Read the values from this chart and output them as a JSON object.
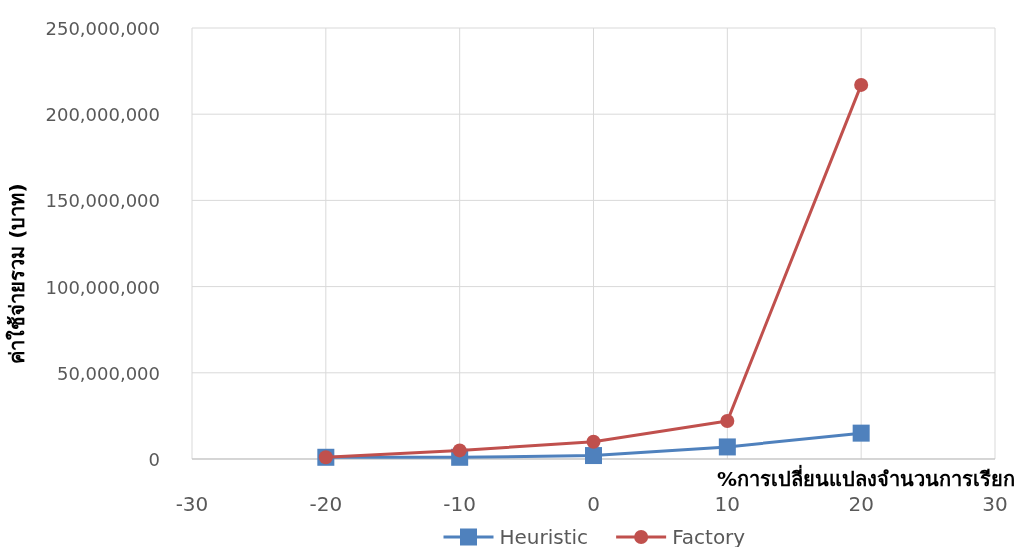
{
  "chart_data": {
    "type": "line",
    "xlabel": "%การเปลี่ยนแปลงจำนวนการเรียก",
    "ylabel": "ค่าใช้จ่ายรวม (บาท)",
    "x": [
      -20,
      -10,
      0,
      10,
      20
    ],
    "series": [
      {
        "name": "Heuristic",
        "color": "#4f81bd",
        "marker": "square",
        "values": [
          1000000,
          1000000,
          2000000,
          7000000,
          15000000
        ]
      },
      {
        "name": "Factory",
        "color": "#c0504d",
        "marker": "circle",
        "values": [
          1000000,
          5000000,
          10000000,
          22000000,
          217000000
        ]
      }
    ],
    "xlim": [
      -30,
      30
    ],
    "xticks": [
      -30,
      -20,
      -10,
      0,
      10,
      20,
      30
    ],
    "ylim": [
      0,
      250000000
    ],
    "yticks": [
      {
        "value": 0,
        "label": "0"
      },
      {
        "value": 50000000,
        "label": "50,000,000"
      },
      {
        "value": 100000000,
        "label": "100,000,000"
      },
      {
        "value": 150000000,
        "label": "150,000,000"
      },
      {
        "value": 200000000,
        "label": "200,000,000"
      },
      {
        "value": 250000000,
        "label": "250,000,000"
      }
    ],
    "grid": true,
    "legend": "bottom",
    "line_style": "solid"
  }
}
